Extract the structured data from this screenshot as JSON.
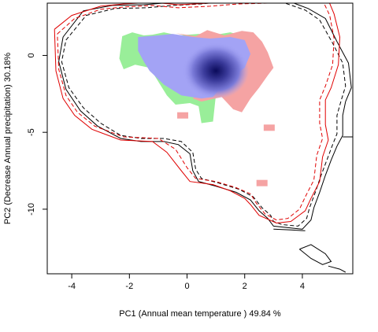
{
  "chart_data": {
    "type": "contour-density",
    "xlabel": "PC1 (Annual mean temperature ) 49.84 %",
    "ylabel": "PC2 (Decrease Annual precipitation) 30.18%",
    "xlim": [
      -4.85,
      5.75
    ],
    "ylim": [
      -14.2,
      3.4
    ],
    "x_ticks": [
      -4,
      -2,
      0,
      2,
      4
    ],
    "y_ticks": [
      0,
      -5,
      -10
    ],
    "colors": {
      "overlap_light": "#a3a3f5",
      "density_peak": "#0a0a5a",
      "green_region": "#99ee99",
      "red_region": "#f5a3a3",
      "envelope_black": "#000000",
      "envelope_red": "#e00000"
    },
    "regions": {
      "green": [
        [
          -2.25,
          1.25
        ],
        [
          -1.9,
          1.5
        ],
        [
          -1.5,
          1.3
        ],
        [
          -1.2,
          1.35
        ],
        [
          -0.8,
          1.5
        ],
        [
          -0.3,
          1.3
        ],
        [
          0.4,
          1.4
        ],
        [
          1,
          1.35
        ],
        [
          1.5,
          1.5
        ],
        [
          1.9,
          1.3
        ],
        [
          1.6,
          0.6
        ],
        [
          1.3,
          -1.6
        ],
        [
          1,
          -2.6
        ],
        [
          0.9,
          -4.3
        ],
        [
          0.5,
          -4.4
        ],
        [
          0.4,
          -3.3
        ],
        [
          0.1,
          -3.1
        ],
        [
          -0.4,
          -3.2
        ],
        [
          -0.7,
          -2.6
        ],
        [
          -1.1,
          -1.4
        ],
        [
          -1.3,
          -0.8
        ],
        [
          -1.8,
          -0.6
        ],
        [
          -2.2,
          -0.9
        ],
        [
          -2.35,
          -0.2
        ]
      ],
      "red": [
        [
          -0.4,
          1.45
        ],
        [
          0.3,
          1.25
        ],
        [
          0.7,
          1.65
        ],
        [
          1.3,
          1.3
        ],
        [
          1.9,
          1.6
        ],
        [
          2.3,
          1.5
        ],
        [
          2.6,
          0.9
        ],
        [
          2.8,
          0.2
        ],
        [
          3.0,
          -0.8
        ],
        [
          2.8,
          -1.3
        ],
        [
          2.5,
          -2.1
        ],
        [
          2.2,
          -2.8
        ],
        [
          1.9,
          -3.7
        ],
        [
          1.6,
          -3.5
        ],
        [
          1.2,
          -2.7
        ],
        [
          0.5,
          -3.0
        ],
        [
          0.2,
          -2.8
        ],
        [
          0.8,
          -1.5
        ],
        [
          1.4,
          0.2
        ],
        [
          0.6,
          1.0
        ]
      ],
      "blue": [
        [
          -1.7,
          1.2
        ],
        [
          -1.0,
          1.3
        ],
        [
          -0.5,
          1.4
        ],
        [
          0.2,
          1.2
        ],
        [
          0.8,
          1.1
        ],
        [
          1.5,
          1.2
        ],
        [
          2.0,
          1.0
        ],
        [
          2.2,
          0.1
        ],
        [
          2.0,
          -0.8
        ],
        [
          1.3,
          -1.8
        ],
        [
          0.9,
          -2.7
        ],
        [
          0.5,
          -2.8
        ],
        [
          -0.2,
          -2.6
        ],
        [
          -0.8,
          -1.9
        ],
        [
          -1.3,
          -1.0
        ],
        [
          -1.5,
          -0.4
        ],
        [
          -1.7,
          0.3
        ]
      ],
      "peak": [
        1.0,
        -1.0
      ],
      "red_spots": [
        [
          -0.15,
          -3.9
        ],
        [
          2.85,
          -4.7
        ],
        [
          2.6,
          -8.3
        ]
      ]
    },
    "envelopes": [
      {
        "color": "black",
        "dash": false,
        "points": [
          [
            -4.3,
            1.2
          ],
          [
            -3.6,
            2.9
          ],
          [
            -2.6,
            3.25
          ],
          [
            -1.5,
            3.3
          ],
          [
            -0.5,
            3.45
          ],
          [
            0.6,
            3.55
          ],
          [
            1.5,
            3.75
          ],
          [
            2.5,
            3.85
          ],
          [
            3.5,
            3.55
          ],
          [
            4.2,
            3.05
          ],
          [
            4.8,
            2.4
          ],
          [
            5.2,
            0.9
          ],
          [
            5.6,
            -0.5
          ],
          [
            5.7,
            -2.1
          ],
          [
            5.5,
            -3.0
          ],
          [
            5.4,
            -3.9
          ],
          [
            5.4,
            -5.2
          ],
          [
            5.2,
            -5.9
          ],
          [
            5.0,
            -6.8
          ],
          [
            4.8,
            -7.8
          ],
          [
            4.6,
            -8.9
          ],
          [
            4.4,
            -9.9
          ],
          [
            4.3,
            -10.7
          ],
          [
            4.0,
            -11.3
          ],
          [
            3.5,
            -11.2
          ],
          [
            3.0,
            -11.1
          ],
          [
            2.8,
            -10.6
          ],
          [
            2.5,
            -10.1
          ],
          [
            2.2,
            -9.4
          ],
          [
            1.7,
            -8.9
          ],
          [
            1.0,
            -8.5
          ],
          [
            0.4,
            -8.2
          ],
          [
            0.2,
            -7.5
          ],
          [
            0.1,
            -6.4
          ],
          [
            -0.3,
            -5.8
          ],
          [
            -0.8,
            -5.6
          ],
          [
            -1.6,
            -5.6
          ],
          [
            -2.3,
            -5.4
          ],
          [
            -3.1,
            -4.6
          ],
          [
            -3.7,
            -3.6
          ],
          [
            -4.2,
            -2.2
          ],
          [
            -4.45,
            -0.4
          ],
          [
            -4.3,
            1.2
          ]
        ]
      },
      {
        "color": "black",
        "dash": true,
        "points": [
          [
            -4.2,
            1.0
          ],
          [
            -3.5,
            2.6
          ],
          [
            -2.5,
            3.05
          ],
          [
            -1.4,
            3.1
          ],
          [
            -0.5,
            3.25
          ],
          [
            0.5,
            3.35
          ],
          [
            1.5,
            3.55
          ],
          [
            2.5,
            3.6
          ],
          [
            3.4,
            3.4
          ],
          [
            4.1,
            2.95
          ],
          [
            4.6,
            2.3
          ],
          [
            5.05,
            0.8
          ],
          [
            5.4,
            -0.5
          ],
          [
            5.5,
            -2.0
          ],
          [
            5.35,
            -2.9
          ],
          [
            5.2,
            -3.9
          ],
          [
            5.2,
            -5.1
          ],
          [
            5.05,
            -5.8
          ],
          [
            4.85,
            -6.8
          ],
          [
            4.65,
            -7.8
          ],
          [
            4.45,
            -8.9
          ],
          [
            4.25,
            -9.9
          ],
          [
            4.15,
            -10.6
          ],
          [
            3.85,
            -11.1
          ],
          [
            3.3,
            -11.0
          ],
          [
            3.0,
            -10.8
          ],
          [
            2.9,
            -10.4
          ],
          [
            2.6,
            -9.9
          ],
          [
            2.3,
            -9.2
          ],
          [
            1.8,
            -8.7
          ],
          [
            1.1,
            -8.3
          ],
          [
            0.5,
            -8.0
          ],
          [
            0.3,
            -7.4
          ],
          [
            0.2,
            -6.3
          ],
          [
            -0.2,
            -5.6
          ],
          [
            -0.8,
            -5.4
          ],
          [
            -1.6,
            -5.4
          ],
          [
            -2.3,
            -5.2
          ],
          [
            -3.0,
            -4.4
          ],
          [
            -3.6,
            -3.4
          ],
          [
            -4.1,
            -2.1
          ],
          [
            -4.35,
            -0.4
          ],
          [
            -4.2,
            1.0
          ]
        ]
      },
      {
        "color": "red",
        "dash": false,
        "points": [
          [
            -4.6,
            1.7
          ],
          [
            -4.0,
            2.6
          ],
          [
            -3.0,
            3.2
          ],
          [
            -2.2,
            3.35
          ],
          [
            -1.2,
            3.45
          ],
          [
            -0.3,
            3.3
          ],
          [
            0.8,
            3.4
          ],
          [
            1.8,
            3.55
          ],
          [
            2.8,
            3.6
          ],
          [
            3.6,
            3.7
          ],
          [
            4.4,
            3.85
          ],
          [
            4.9,
            3.6
          ],
          [
            5.1,
            2.7
          ],
          [
            5.3,
            1.2
          ],
          [
            5.25,
            -0.6
          ],
          [
            5.0,
            -2.1
          ],
          [
            4.8,
            -2.9
          ],
          [
            4.8,
            -4.5
          ],
          [
            4.9,
            -5.5
          ],
          [
            4.7,
            -6.6
          ],
          [
            4.6,
            -8.2
          ],
          [
            4.3,
            -9.3
          ],
          [
            4.1,
            -10.1
          ],
          [
            3.6,
            -10.8
          ],
          [
            3.1,
            -10.9
          ],
          [
            2.5,
            -10.4
          ],
          [
            2.2,
            -9.7
          ],
          [
            2.0,
            -9.3
          ],
          [
            1.5,
            -8.8
          ],
          [
            0.9,
            -8.4
          ],
          [
            0.1,
            -8.2
          ],
          [
            -0.2,
            -7.5
          ],
          [
            -0.7,
            -6.3
          ],
          [
            -1.2,
            -5.6
          ],
          [
            -2.3,
            -5.5
          ],
          [
            -3.3,
            -4.8
          ],
          [
            -3.9,
            -3.9
          ],
          [
            -4.3,
            -2.8
          ],
          [
            -4.55,
            -1.0
          ],
          [
            -4.6,
            1.7
          ]
        ]
      },
      {
        "color": "red",
        "dash": true,
        "points": [
          [
            -4.5,
            1.4
          ],
          [
            -3.9,
            2.4
          ],
          [
            -3.0,
            3.0
          ],
          [
            -2.2,
            3.15
          ],
          [
            -1.2,
            3.25
          ],
          [
            -0.3,
            3.1
          ],
          [
            0.8,
            3.2
          ],
          [
            1.8,
            3.35
          ],
          [
            2.8,
            3.4
          ],
          [
            3.6,
            3.5
          ],
          [
            4.4,
            3.65
          ],
          [
            4.75,
            3.4
          ],
          [
            4.95,
            2.6
          ],
          [
            5.1,
            1.1
          ],
          [
            5.05,
            -0.6
          ],
          [
            4.8,
            -2.0
          ],
          [
            4.6,
            -2.9
          ],
          [
            4.6,
            -4.4
          ],
          [
            4.7,
            -5.4
          ],
          [
            4.5,
            -6.5
          ],
          [
            4.4,
            -8.1
          ],
          [
            4.1,
            -9.2
          ],
          [
            3.9,
            -10.0
          ],
          [
            3.5,
            -10.6
          ],
          [
            3.1,
            -10.7
          ],
          [
            2.7,
            -10.3
          ],
          [
            2.4,
            -9.6
          ],
          [
            2.2,
            -9.0
          ],
          [
            1.7,
            -8.6
          ],
          [
            1.0,
            -8.2
          ],
          [
            0.3,
            -8.0
          ],
          [
            0.0,
            -7.3
          ],
          [
            -0.4,
            -6.1
          ],
          [
            -1.0,
            -5.4
          ],
          [
            -2.2,
            -5.3
          ],
          [
            -3.2,
            -4.6
          ],
          [
            -3.8,
            -3.7
          ],
          [
            -4.2,
            -2.6
          ],
          [
            -4.45,
            -0.9
          ],
          [
            -4.5,
            1.4
          ]
        ]
      },
      {
        "color": "black",
        "dash": false,
        "points": [
          [
            3.9,
            -12.6
          ],
          [
            4.3,
            -12.3
          ],
          [
            4.8,
            -12.9
          ],
          [
            5.0,
            -13.4
          ],
          [
            4.7,
            -13.6
          ],
          [
            4.3,
            -13.2
          ],
          [
            3.9,
            -12.6
          ]
        ]
      },
      {
        "color": "black",
        "dash": false,
        "points": [
          [
            4.9,
            -13.7
          ],
          [
            5.3,
            -13.9
          ],
          [
            5.5,
            -14.1
          ]
        ]
      },
      {
        "color": "black",
        "dash": false,
        "points": [
          [
            5.4,
            -5.3
          ],
          [
            5.75,
            -5.3
          ]
        ]
      },
      {
        "color": "black",
        "dash": false,
        "points": [
          [
            3.0,
            -11.3
          ],
          [
            3.6,
            -11.35
          ],
          [
            4.1,
            -11.4
          ]
        ]
      }
    ]
  }
}
